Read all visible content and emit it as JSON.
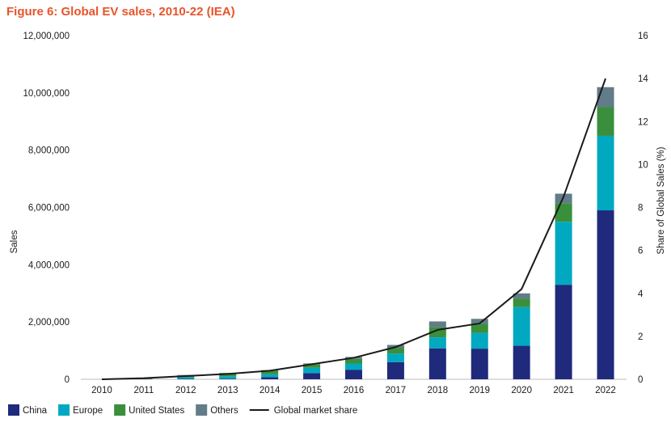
{
  "title": "Figure 6: Global EV sales, 2010-22 (IEA)",
  "colors": {
    "title": "#e8542a",
    "China": "#1f2a7c",
    "Europe": "#00a9c0",
    "United States": "#3a8f3c",
    "Others": "#627c88",
    "Global market share": "#1a1a1a"
  },
  "chart_data": {
    "type": "bar",
    "stacked": true,
    "categories": [
      "2010",
      "2011",
      "2012",
      "2013",
      "2014",
      "2015",
      "2016",
      "2017",
      "2018",
      "2019",
      "2020",
      "2021",
      "2022"
    ],
    "series": [
      {
        "name": "China",
        "axis": "left",
        "values": [
          0,
          10000,
          15000,
          18000,
          75000,
          215000,
          335000,
          600000,
          1080000,
          1070000,
          1170000,
          3300000,
          5900000
        ]
      },
      {
        "name": "Europe",
        "axis": "left",
        "values": [
          0,
          10000,
          60000,
          90000,
          100000,
          185000,
          215000,
          300000,
          385000,
          550000,
          1350000,
          2200000,
          2600000
        ]
      },
      {
        "name": "United States",
        "axis": "left",
        "values": [
          0,
          15000,
          60000,
          95000,
          120000,
          115000,
          160000,
          200000,
          360000,
          325000,
          300000,
          650000,
          1000000
        ]
      },
      {
        "name": "Others",
        "axis": "left",
        "values": [
          0,
          5000,
          15000,
          20000,
          25000,
          40000,
          70000,
          100000,
          195000,
          165000,
          180000,
          330000,
          700000
        ]
      },
      {
        "name": "Global market share",
        "type": "line",
        "axis": "right",
        "values": [
          0,
          0.05,
          0.15,
          0.25,
          0.4,
          0.7,
          1.0,
          1.5,
          2.3,
          2.6,
          4.2,
          8.5,
          14
        ]
      }
    ],
    "xlabel": "",
    "ylabel": "Sales",
    "ylabel_right": "Share of Global Sales (%)",
    "ylim": [
      0,
      12000000
    ],
    "ylim_right": [
      0,
      16
    ],
    "yticks": [
      "12,000,000",
      "10,000,000",
      "8,000,000",
      "6,000,000",
      "4,000,000",
      "2,000,000",
      "0"
    ],
    "yticks_right": [
      "16",
      "14",
      "12",
      "10",
      "8",
      "6",
      "4",
      "2",
      "0"
    ],
    "grid": false,
    "legend_position": "bottom-left"
  }
}
